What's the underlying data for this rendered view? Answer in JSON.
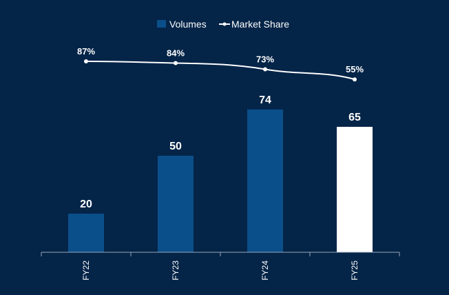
{
  "chart_data": {
    "type": "bar",
    "categories": [
      "FY22",
      "FY23",
      "FY24",
      "FY25"
    ],
    "series": [
      {
        "name": "Volumes",
        "type": "bar",
        "values": [
          20,
          50,
          74,
          65
        ],
        "labels": [
          "20",
          "50",
          "74",
          "65"
        ],
        "color": "#0b4f8a",
        "highlight_color": "#ffffff",
        "highlight_category": "FY25"
      },
      {
        "name": "Market Share",
        "type": "line",
        "values": [
          87,
          84,
          73,
          55
        ],
        "labels": [
          "87%",
          "84%",
          "73%",
          "55%"
        ],
        "color": "#ffffff"
      }
    ],
    "legend": {
      "position": "top-center",
      "items": [
        {
          "name": "Volumes",
          "symbol": "square",
          "color": "#0b4f8a"
        },
        {
          "name": "Market Share",
          "symbol": "line-marker",
          "color": "#ffffff"
        }
      ]
    },
    "grid": false,
    "background": "#042448",
    "axis_color": "#9aa8b8"
  }
}
